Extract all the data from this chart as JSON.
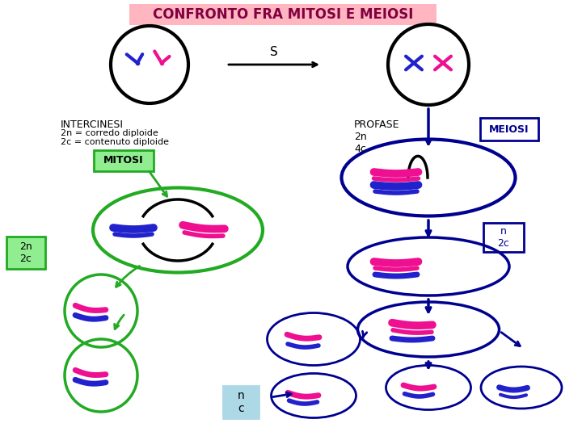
{
  "title": "CONFRONTO FRA MITOSI E MEIOSI",
  "title_bg": "#FFB6C1",
  "title_color": "#800040",
  "bg_color": "#FFFFFF",
  "arrow_s_text": "S",
  "intercinesi_line1": "INTERCINESI",
  "intercinesi_line2": "2n = corredo diploide",
  "intercinesi_line3": "2c = contenuto diploide",
  "profase_text": "PROFASE\n2n\n4c",
  "meiosi_label": "MEIOSI",
  "mitosi_label": "MITOSI",
  "label_2n2c": "2n\n2c",
  "label_n2c": "n\n2c",
  "label_nc": "n\nc",
  "green_color": "#22AA22",
  "blue_dark": "#000090",
  "pink": "#EE1090",
  "blue_chrom": "#2222CC",
  "black": "#000000",
  "light_blue_box": "#ADD8E6"
}
